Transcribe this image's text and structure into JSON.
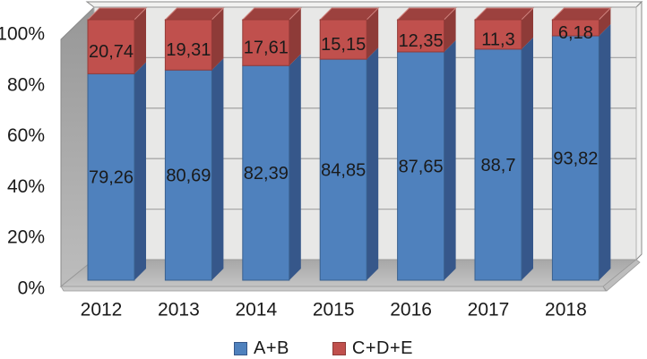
{
  "chart_data": {
    "type": "bar",
    "subtype": "stacked-100-percent-3d",
    "title": "",
    "xlabel": "",
    "ylabel": "",
    "categories": [
      "2012",
      "2013",
      "2014",
      "2015",
      "2016",
      "2017",
      "2018"
    ],
    "series": [
      {
        "name": "A+B",
        "color": "#4F81BD",
        "side_color": "#36578A",
        "values": [
          79.26,
          80.69,
          82.39,
          84.85,
          87.65,
          88.7,
          93.82
        ],
        "display": [
          "79,26",
          "80,69",
          "82,39",
          "84,85",
          "87,65",
          "88,7",
          "93,82"
        ]
      },
      {
        "name": "C+D+E",
        "color": "#C0504D",
        "side_color": "#8E3B38",
        "top_color": "#9C413E",
        "values": [
          20.74,
          19.31,
          17.61,
          15.15,
          12.35,
          11.3,
          6.18
        ],
        "display": [
          "20,74",
          "19,31",
          "17,61",
          "15,15",
          "12,35",
          "11,3",
          "6,18"
        ]
      }
    ],
    "yticks": [
      "0%",
      "20%",
      "40%",
      "60%",
      "80%",
      "100%"
    ],
    "ylim": [
      0,
      100
    ],
    "grid": true,
    "legend_position": "bottom",
    "wall_color": "#E8E8E7",
    "side_wall_color": "#A6A6A6",
    "floor_color": "#B3B3B3",
    "gridline_color": "#A9A9A9",
    "label_color": "#1A1A1A"
  }
}
